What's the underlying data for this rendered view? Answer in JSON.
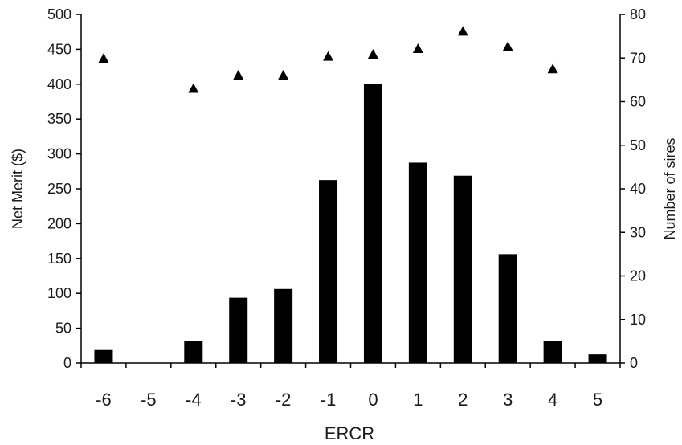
{
  "chart_data": {
    "type": "bar",
    "title": "",
    "xlabel": "ERCR",
    "ylabel_left": "Net Merit ($)",
    "ylabel_right": "Number of sires",
    "categories": [
      "-6",
      "-5",
      "-4",
      "-3",
      "-2",
      "-1",
      "0",
      "1",
      "2",
      "3",
      "4",
      "5"
    ],
    "ylim_left": [
      0,
      500
    ],
    "ylim_right": [
      0,
      80
    ],
    "yticks_left": [
      "0",
      "50",
      "100",
      "150",
      "200",
      "250",
      "300",
      "350",
      "400",
      "450",
      "500"
    ],
    "yticks_right": [
      "0",
      "10",
      "20",
      "30",
      "40",
      "50",
      "60",
      "70",
      "80"
    ],
    "series": [
      {
        "axis": "right",
        "type": "bar",
        "values": [
          3,
          0,
          5,
          15,
          17,
          42,
          64,
          46,
          43,
          25,
          5,
          2
        ],
        "color": "#000000"
      },
      {
        "axis": "left",
        "type": "scatter",
        "marker": "triangle",
        "values": [
          437,
          null,
          394,
          413,
          413,
          440,
          443,
          451,
          476,
          454,
          422,
          null
        ],
        "color": "#000000"
      }
    ],
    "grid": false,
    "legend": "none"
  }
}
